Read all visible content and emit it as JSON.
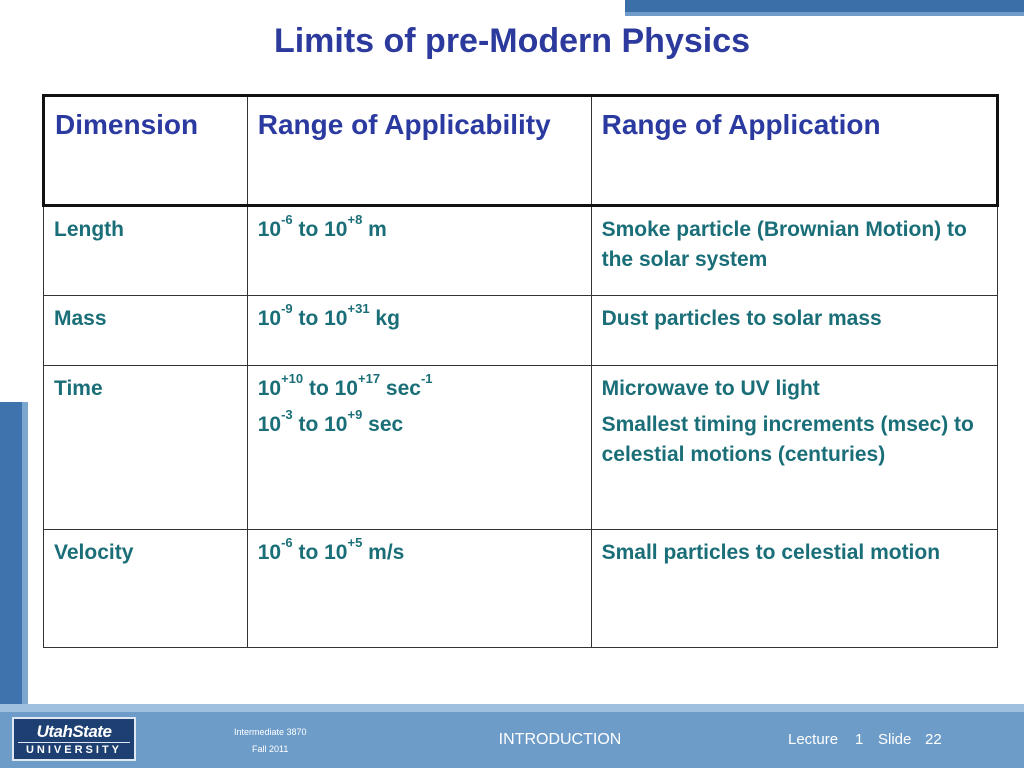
{
  "slide": {
    "title": "Limits of pre-Modern Physics"
  },
  "table": {
    "headers": [
      "Dimension",
      "Range of Applicability",
      "Range of Application"
    ],
    "rows": [
      {
        "dimension": "Length",
        "range_base1": "10",
        "range_exp1": "-6",
        "range_mid": " to 10",
        "range_exp2": "+8",
        "range_unit": " m",
        "application": "Smoke particle (Brownian Motion) to the solar system"
      },
      {
        "dimension": "Mass",
        "range_base1": "10",
        "range_exp1": "-9",
        "range_mid": " to 10",
        "range_exp2": "+31",
        "range_unit": " kg",
        "application": "Dust particles to solar mass"
      },
      {
        "dimension": "Time",
        "range_base1": "10",
        "range_exp1": "+10",
        "range_mid": " to 10",
        "range_exp2": "+17",
        "range_unit": " sec",
        "range_exp3": "-1",
        "range2_base1": "10",
        "range2_exp1": "-3",
        "range2_mid": " to 10",
        "range2_exp2": "+9",
        "range2_unit": " sec",
        "application": "Microwave to UV light",
        "application2": "Smallest timing increments (msec) to celestial motions (centuries)"
      },
      {
        "dimension": "Velocity",
        "range_base1": "10",
        "range_exp1": "-6",
        "range_mid": " to 10",
        "range_exp2": "+5",
        "range_unit": " m/s",
        "application": "Small particles to celestial motion"
      }
    ]
  },
  "footer": {
    "logo_top": "UtahState",
    "logo_bottom": "UNIVERSITY",
    "course": "Intermediate  3870",
    "term": "Fall 2011",
    "section": "INTRODUCTION",
    "lecture_label": "Lecture",
    "lecture_num": "1",
    "slide_label": "Slide",
    "slide_num": "22"
  }
}
